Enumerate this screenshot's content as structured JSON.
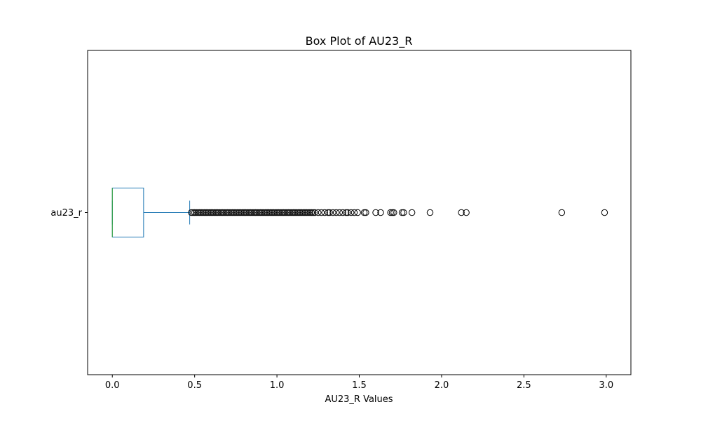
{
  "chart_data": {
    "type": "box",
    "orientation": "horizontal",
    "title": "Box Plot of AU23_R",
    "xlabel": "AU23_R Values",
    "ylabel": "",
    "xlim": [
      -0.15,
      3.15
    ],
    "xticks": [
      0.0,
      0.5,
      1.0,
      1.5,
      2.0,
      2.5,
      3.0
    ],
    "xtick_labels": [
      "0.0",
      "0.5",
      "1.0",
      "1.5",
      "2.0",
      "2.5",
      "3.0"
    ],
    "grid": false,
    "series": [
      {
        "category": "au23_r",
        "whisker_low": 0.0,
        "q1": 0.0,
        "median": 0.0,
        "q3": 0.19,
        "whisker_high": 0.47,
        "outliers": [
          0.48,
          0.49,
          0.5,
          0.51,
          0.52,
          0.53,
          0.54,
          0.55,
          0.56,
          0.57,
          0.58,
          0.59,
          0.6,
          0.61,
          0.62,
          0.63,
          0.64,
          0.65,
          0.66,
          0.67,
          0.68,
          0.69,
          0.7,
          0.71,
          0.72,
          0.73,
          0.74,
          0.75,
          0.76,
          0.77,
          0.78,
          0.79,
          0.8,
          0.81,
          0.82,
          0.83,
          0.84,
          0.85,
          0.86,
          0.87,
          0.88,
          0.89,
          0.9,
          0.91,
          0.92,
          0.93,
          0.94,
          0.95,
          0.96,
          0.97,
          0.98,
          0.99,
          1.0,
          1.01,
          1.02,
          1.03,
          1.04,
          1.05,
          1.06,
          1.07,
          1.08,
          1.09,
          1.1,
          1.11,
          1.12,
          1.13,
          1.14,
          1.15,
          1.16,
          1.17,
          1.18,
          1.19,
          1.2,
          1.21,
          1.22,
          1.23,
          1.25,
          1.27,
          1.29,
          1.31,
          1.32,
          1.34,
          1.36,
          1.38,
          1.4,
          1.42,
          1.43,
          1.45,
          1.47,
          1.49,
          1.53,
          1.54,
          1.6,
          1.63,
          1.69,
          1.7,
          1.71,
          1.76,
          1.77,
          1.82,
          1.93,
          2.12,
          2.15,
          2.73,
          2.99
        ]
      }
    ],
    "colors": {
      "box": "#1f77b4",
      "median": "#2ca02c",
      "outlier_edge": "#000000",
      "axes": "#000000"
    }
  }
}
